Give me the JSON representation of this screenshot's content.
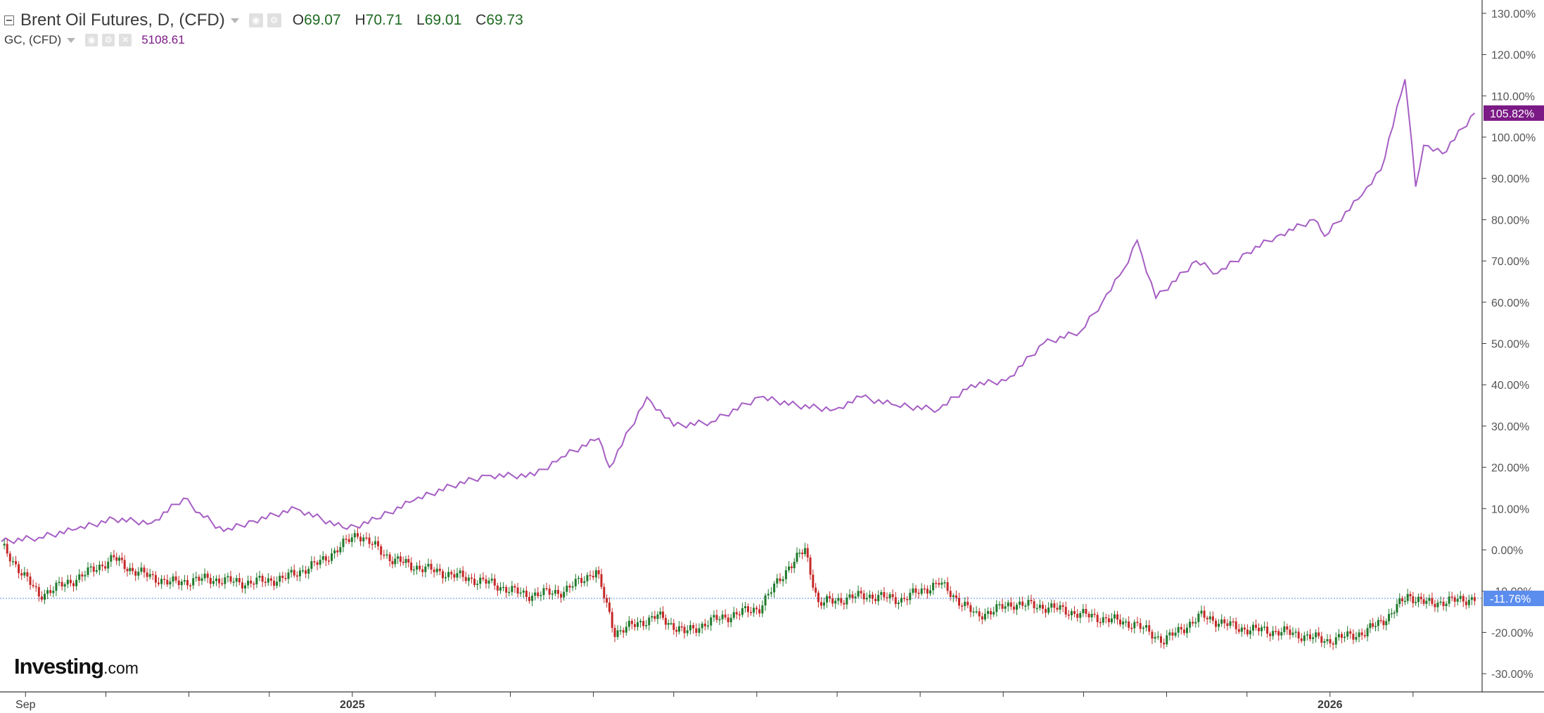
{
  "legend": {
    "main_title": "Brent Oil Futures, D, (CFD)",
    "ohlc": [
      {
        "key": "O",
        "value": "69.07"
      },
      {
        "key": "H",
        "value": "70.71"
      },
      {
        "key": "L",
        "value": "69.01"
      },
      {
        "key": "C",
        "value": "69.73"
      }
    ],
    "compare_title": "GC, (CFD)",
    "compare_value": "5108.61"
  },
  "logo": {
    "text": "Investing",
    "suffix": ".com"
  },
  "colors": {
    "up_candle": "#1f7a2c",
    "down_candle": "#c62828",
    "compare_line": "#a65ec4",
    "compare_badge": "#7b1a86",
    "main_badge": "#5b8def",
    "axis": "#3a3a3a",
    "grid_tick": "#555555"
  },
  "chart_data": {
    "type": "line",
    "title": "",
    "xlabel": "",
    "ylabel": "",
    "scale": "percent change",
    "ylim": [
      -32,
      131
    ],
    "x_ticks": [
      "Sep",
      "2025",
      "2026"
    ],
    "y_ticks": [
      "130.00%",
      "120.00%",
      "110.00%",
      "100.00%",
      "90.00%",
      "80.00%",
      "70.00%",
      "60.00%",
      "50.00%",
      "40.00%",
      "30.00%",
      "20.00%",
      "10.00%",
      "0.00%",
      "-10.00%",
      "-20.00%",
      "-30.00%"
    ],
    "grid": false,
    "last_value_labels": [
      {
        "series": "GC, (CFD)",
        "text": "105.82%",
        "value": 105.82
      },
      {
        "series": "Brent Oil Futures, D, (CFD)",
        "text": "-11.76%",
        "value": -11.76
      }
    ],
    "series": [
      {
        "name": "GC, (CFD)",
        "style": "line",
        "x": [
          "2024-08-23",
          "2024-09-06",
          "2024-09-20",
          "2024-10-04",
          "2024-10-18",
          "2024-10-30",
          "2024-11-05",
          "2024-11-14",
          "2024-11-25",
          "2024-12-11",
          "2024-12-30",
          "2025-01-10",
          "2025-01-24",
          "2025-02-07",
          "2025-02-20",
          "2025-03-10",
          "2025-03-20",
          "2025-04-03",
          "2025-04-07",
          "2025-04-21",
          "2025-05-01",
          "2025-05-15",
          "2025-06-02",
          "2025-06-16",
          "2025-06-30",
          "2025-07-10",
          "2025-07-23",
          "2025-08-08",
          "2025-08-20",
          "2025-09-02",
          "2025-09-16",
          "2025-09-30",
          "2025-10-08",
          "2025-10-16",
          "2025-10-21",
          "2025-10-28",
          "2025-11-12",
          "2025-11-20",
          "2025-12-01",
          "2025-12-12",
          "2025-12-26",
          "2025-12-30",
          "2026-01-13",
          "2026-01-20",
          "2026-01-29",
          "2026-01-30",
          "2026-02-02",
          "2026-02-05",
          "2026-02-12",
          "2026-02-24"
        ],
        "values": [
          2.0,
          3.0,
          5.0,
          7.5,
          6.5,
          12.5,
          9.0,
          4.5,
          7.0,
          10.0,
          5.0,
          7.5,
          12.0,
          15.5,
          18.0,
          18.0,
          22.5,
          27.0,
          20.0,
          37.0,
          30.0,
          31.0,
          37.0,
          35.0,
          34.0,
          37.0,
          35.0,
          34.0,
          40.0,
          41.0,
          50.0,
          53.0,
          60.0,
          68.0,
          75.0,
          61.0,
          70.0,
          67.0,
          72.0,
          76.0,
          80.0,
          76.0,
          86.0,
          92.0,
          114.0,
          108.0,
          88.0,
          98.0,
          96.0,
          105.82
        ]
      },
      {
        "name": "Brent Oil Futures, D, (CFD)",
        "style": "candlestick",
        "x": [
          "2024-08-23",
          "2024-09-06",
          "2024-09-20",
          "2024-10-04",
          "2024-10-11",
          "2024-10-25",
          "2024-11-08",
          "2024-11-22",
          "2024-12-06",
          "2024-12-20",
          "2025-01-03",
          "2025-01-15",
          "2025-01-24",
          "2025-02-07",
          "2025-02-21",
          "2025-03-07",
          "2025-03-21",
          "2025-04-02",
          "2025-04-09",
          "2025-04-25",
          "2025-05-05",
          "2025-05-16",
          "2025-06-02",
          "2025-06-13",
          "2025-06-19",
          "2025-06-24",
          "2025-07-11",
          "2025-07-25",
          "2025-08-08",
          "2025-08-22",
          "2025-09-05",
          "2025-09-19",
          "2025-10-03",
          "2025-10-20",
          "2025-10-31",
          "2025-11-14",
          "2025-11-28",
          "2025-12-16",
          "2025-12-31",
          "2026-01-14",
          "2026-01-23",
          "2026-01-30",
          "2026-02-06",
          "2026-02-24"
        ],
        "values": [
          1.0,
          -11.0,
          -7.0,
          -2.0,
          -5.0,
          -8.0,
          -7.0,
          -8.0,
          -7.0,
          -3.0,
          4.0,
          -2.0,
          -4.0,
          -6.0,
          -8.0,
          -11.0,
          -10.0,
          -5.0,
          -20.0,
          -16.0,
          -20.0,
          -17.0,
          -14.0,
          -4.0,
          0.0,
          -13.0,
          -11.0,
          -12.0,
          -8.0,
          -16.0,
          -13.0,
          -14.0,
          -16.0,
          -18.0,
          -22.0,
          -16.0,
          -19.0,
          -20.0,
          -22.0,
          -20.0,
          -16.0,
          -11.0,
          -13.0,
          -11.76
        ]
      }
    ]
  }
}
